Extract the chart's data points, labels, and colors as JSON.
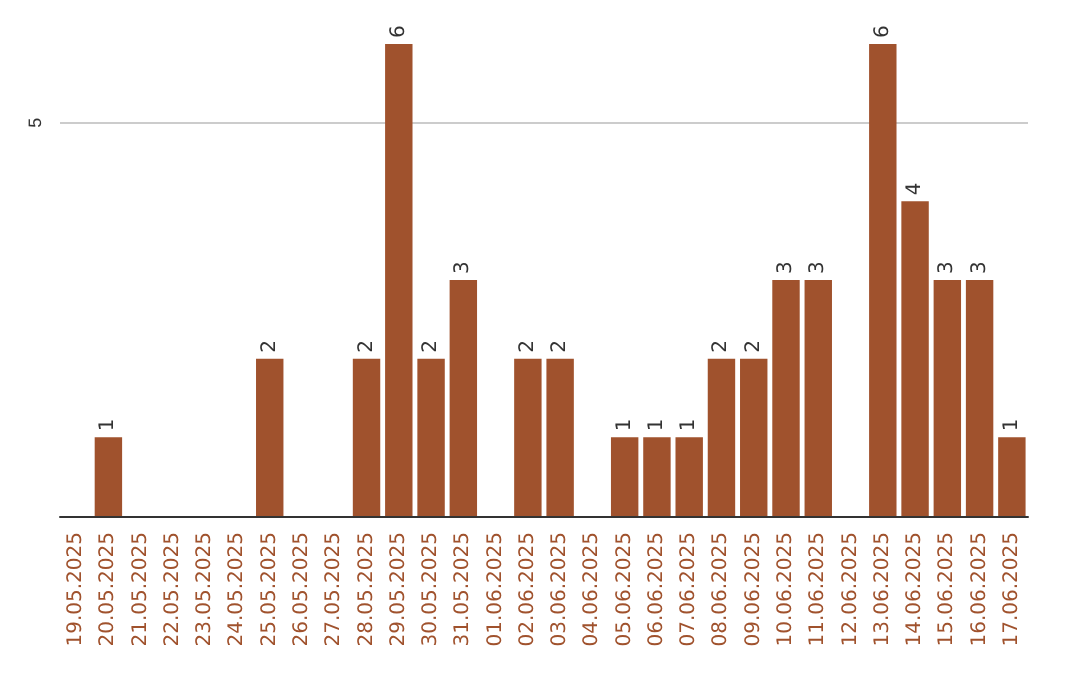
{
  "chart_data": {
    "type": "bar",
    "categories": [
      "19.05.2025",
      "20.05.2025",
      "21.05.2025",
      "22.05.2025",
      "23.05.2025",
      "24.05.2025",
      "25.05.2025",
      "26.05.2025",
      "27.05.2025",
      "28.05.2025",
      "29.05.2025",
      "30.05.2025",
      "31.05.2025",
      "01.06.2025",
      "02.06.2025",
      "03.06.2025",
      "04.06.2025",
      "05.06.2025",
      "06.06.2025",
      "07.06.2025",
      "08.06.2025",
      "09.06.2025",
      "10.06.2025",
      "11.06.2025",
      "12.06.2025",
      "13.06.2025",
      "14.06.2025",
      "15.06.2025",
      "16.06.2025",
      "17.06.2025"
    ],
    "values": [
      0,
      1,
      0,
      0,
      0,
      0,
      2,
      0,
      0,
      2,
      6,
      2,
      3,
      0,
      2,
      2,
      0,
      1,
      1,
      1,
      2,
      2,
      3,
      3,
      0,
      6,
      4,
      3,
      3,
      1
    ],
    "value_labels": [
      null,
      "1",
      null,
      null,
      null,
      null,
      "2",
      null,
      null,
      "2",
      "6",
      "2",
      "3",
      null,
      "2",
      "2",
      null,
      "1",
      "1",
      "1",
      "2",
      "2",
      "3",
      "3",
      null,
      "6",
      "4",
      "3",
      "3",
      "1"
    ],
    "color": "#a0522d",
    "ylim": [
      0,
      6
    ],
    "yticks": [
      5
    ],
    "grid": "y"
  }
}
